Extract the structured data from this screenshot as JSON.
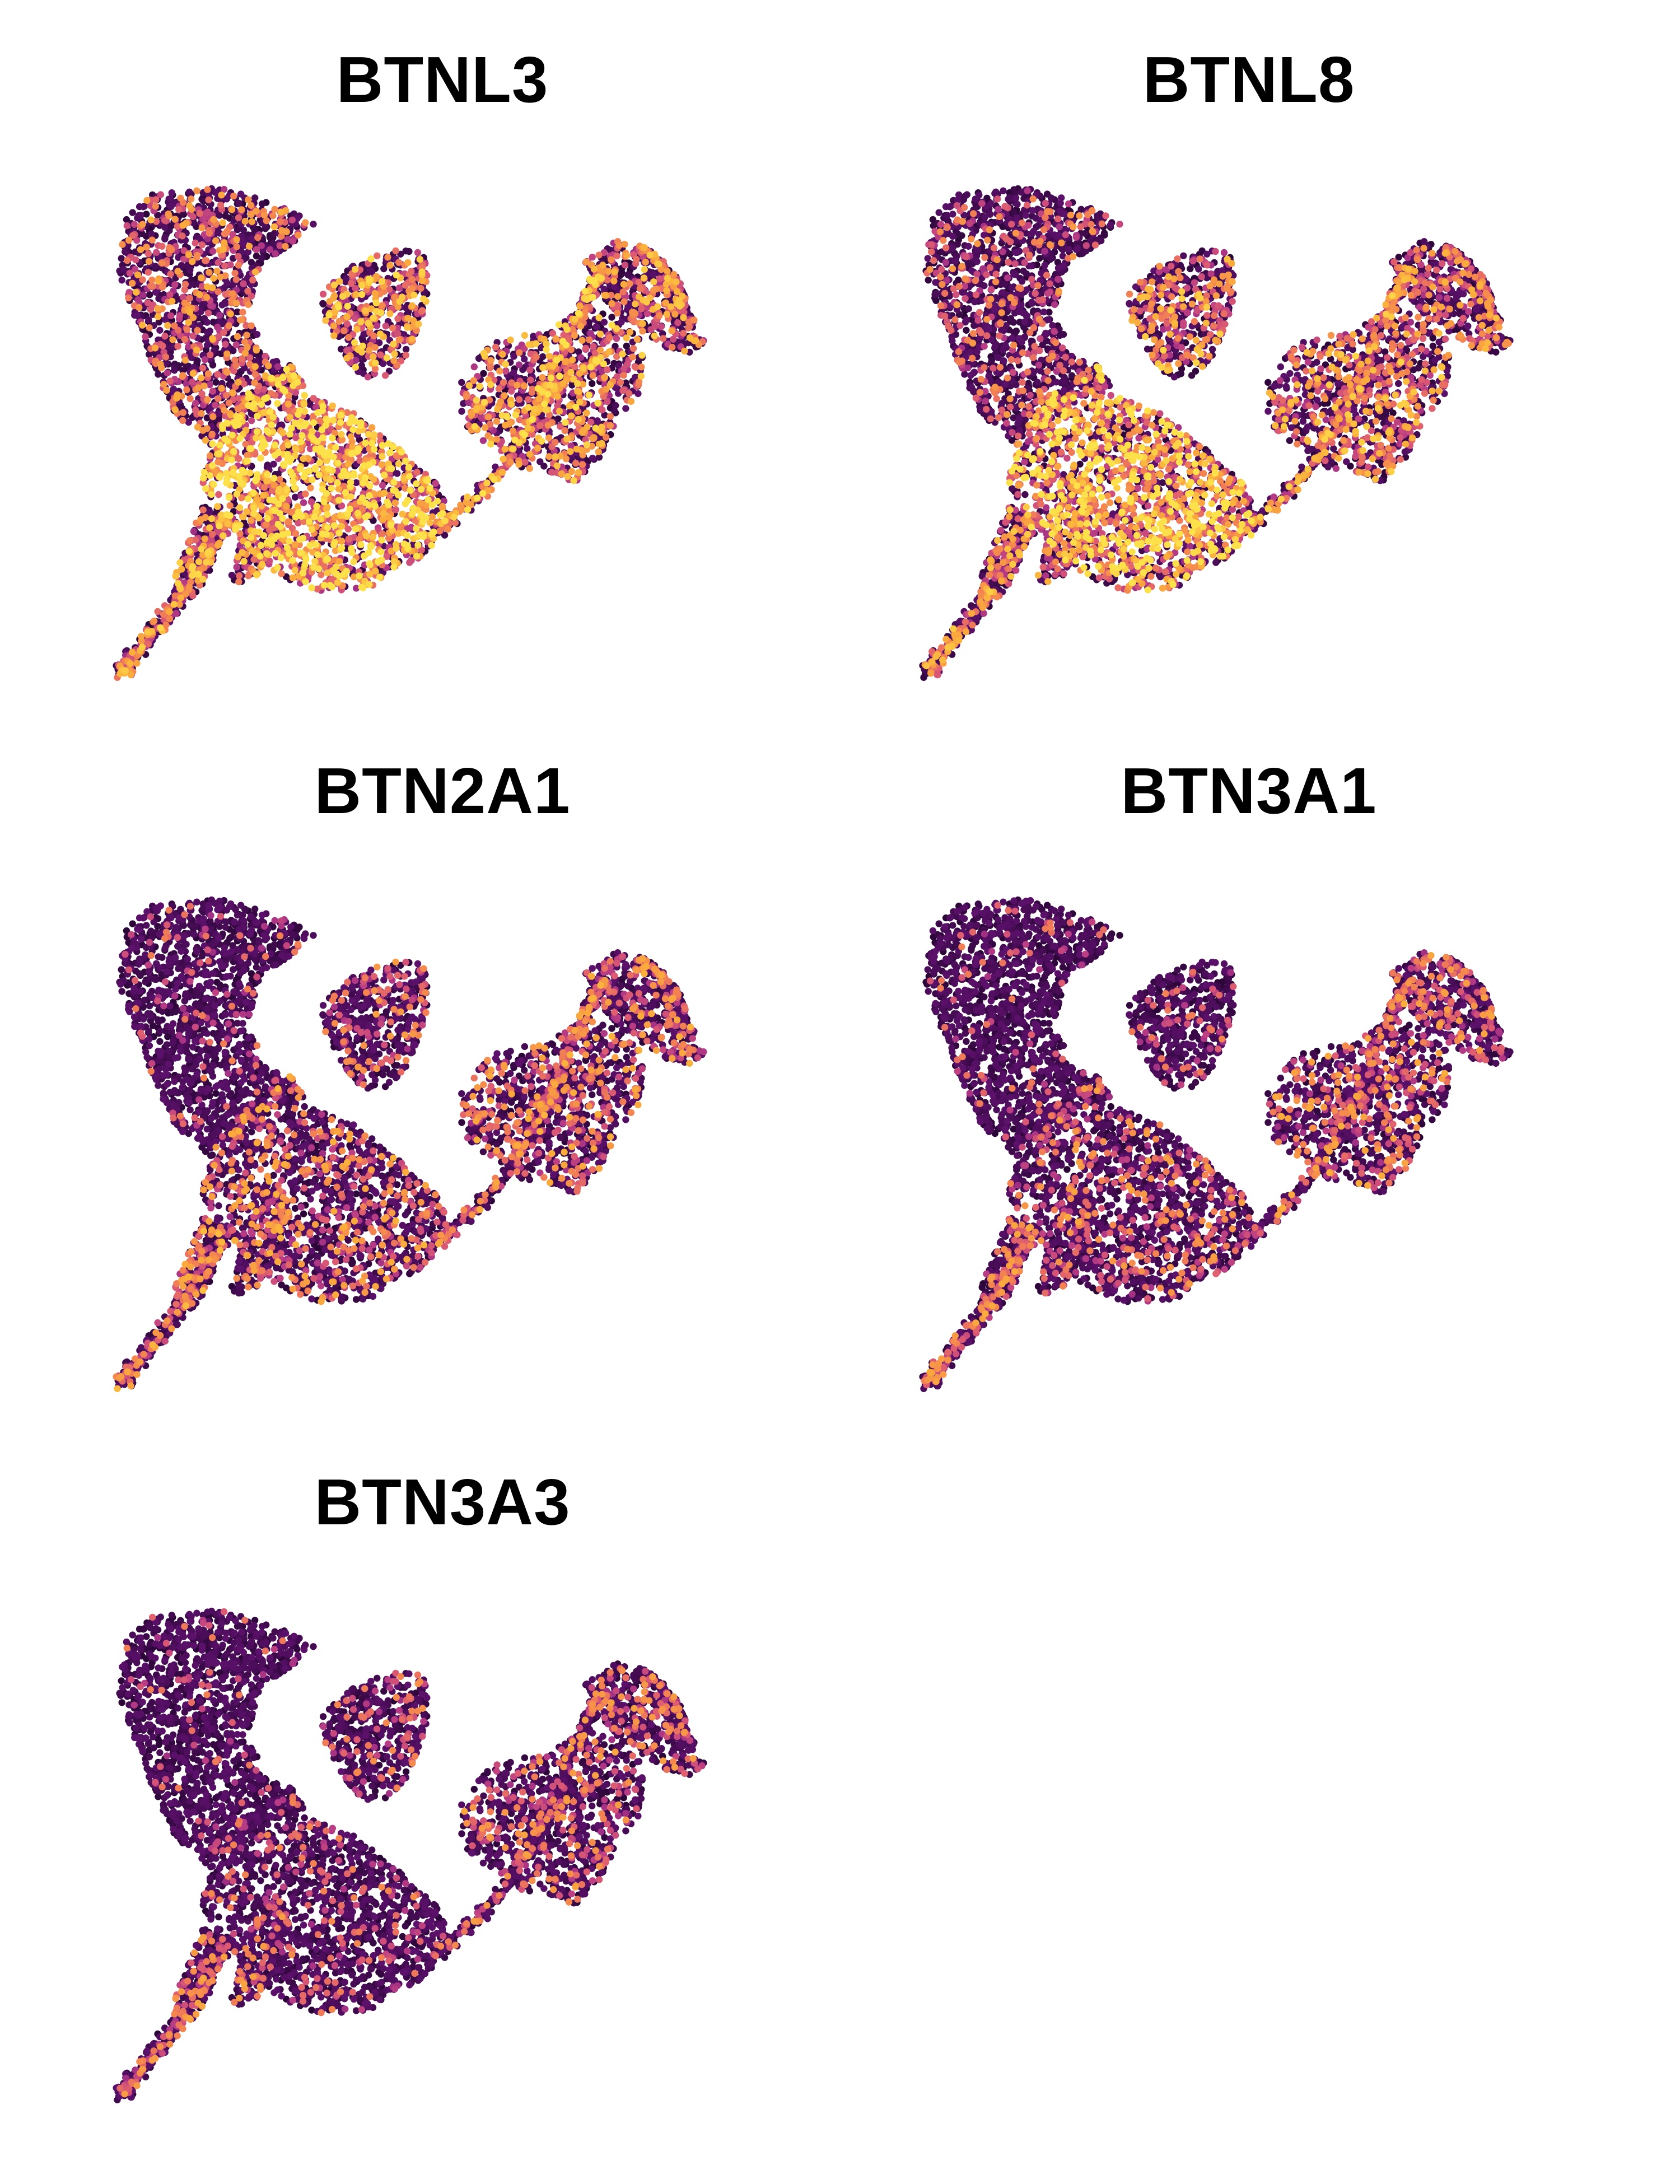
{
  "figure": {
    "type": "umap-feature-plot-grid",
    "colormap_stops": [
      "#2a0636",
      "#5a1069",
      "#8a2483",
      "#b93d84",
      "#dd5c72",
      "#f38252",
      "#fbad3c",
      "#fde14a"
    ],
    "background_color": "#ffffff"
  },
  "chart_data": [
    {
      "type": "scatter",
      "title": "BTNL3",
      "gene": "BTNL3",
      "expression_by_region": {
        "upper-left-lobe": 0.32,
        "central-body": 0.78,
        "upper-mid-island": 0.52,
        "connecting-strand": 0.55,
        "right-cluster": 0.5,
        "far-right-arc": 0.42,
        "lower-tail": 0.48
      }
    },
    {
      "type": "scatter",
      "title": "BTNL8",
      "gene": "BTNL8",
      "expression_by_region": {
        "upper-left-lobe": 0.2,
        "central-body": 0.72,
        "upper-mid-island": 0.45,
        "connecting-strand": 0.45,
        "right-cluster": 0.45,
        "far-right-arc": 0.35,
        "lower-tail": 0.42
      }
    },
    {
      "type": "scatter",
      "title": "BTN2A1",
      "gene": "BTN2A1",
      "expression_by_region": {
        "upper-left-lobe": 0.06,
        "central-body": 0.3,
        "upper-mid-island": 0.22,
        "connecting-strand": 0.32,
        "right-cluster": 0.3,
        "far-right-arc": 0.3,
        "lower-tail": 0.35
      }
    },
    {
      "type": "scatter",
      "title": "BTN3A1",
      "gene": "BTN3A1",
      "expression_by_region": {
        "upper-left-lobe": 0.05,
        "central-body": 0.22,
        "upper-mid-island": 0.12,
        "connecting-strand": 0.28,
        "right-cluster": 0.28,
        "far-right-arc": 0.25,
        "lower-tail": 0.3
      }
    },
    {
      "type": "scatter",
      "title": "BTN3A3",
      "gene": "BTN3A3",
      "expression_by_region": {
        "upper-left-lobe": 0.04,
        "central-body": 0.12,
        "upper-mid-island": 0.14,
        "connecting-strand": 0.22,
        "right-cluster": 0.24,
        "far-right-arc": 0.22,
        "lower-tail": 0.25
      }
    }
  ]
}
